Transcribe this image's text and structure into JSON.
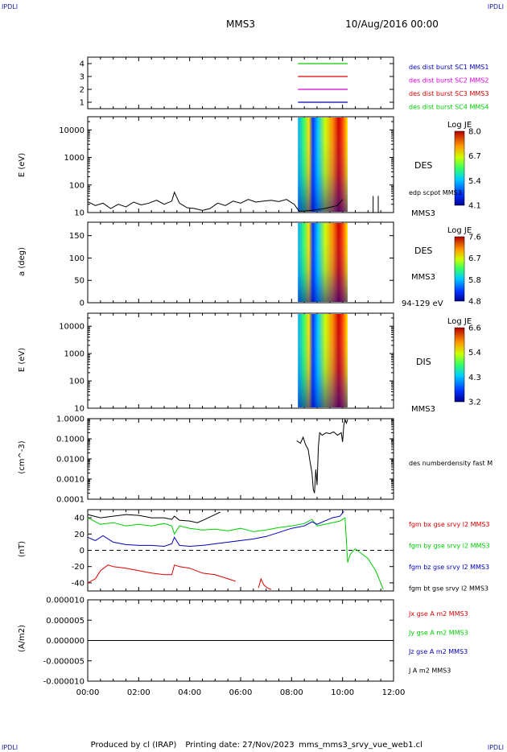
{
  "corner_label": "IPDLI",
  "header": {
    "spacecraft": "MMS3",
    "date": "10/Aug/2016 00:00"
  },
  "footer": {
    "produced_by": "Produced by cl (IRAP)",
    "printing_date": "Printing date: 27/Nov/2023",
    "file": "mms_mms3_srvy_vue_web1.cl"
  },
  "colors": {
    "red": "#dd0000",
    "green": "#00cc00",
    "blue": "#0000bb",
    "magenta": "#dd00dd",
    "black": "#000000",
    "ink": "#000000"
  },
  "time_axis": {
    "ticks": [
      "00:00",
      "02:00",
      "04:00",
      "06:00",
      "08:00",
      "10:00",
      "12:00"
    ],
    "range_hours": [
      0,
      12
    ]
  },
  "chart_data": [
    {
      "type": "line",
      "panel": "burst_coverage",
      "ylim": [
        0.5,
        4.5
      ],
      "yticks": [
        "4",
        "3",
        "2",
        "1"
      ],
      "legend": [
        {
          "text": "des dist burst SC1 MMS1",
          "color": "#0000bb"
        },
        {
          "text": "des dist burst SC2 MMS2",
          "color": "#dd00dd"
        },
        {
          "text": "des dist burst SC3 MMS3",
          "color": "#dd0000"
        },
        {
          "text": "des dist burst SC4 MMS4",
          "color": "#00cc00"
        }
      ],
      "series": [
        {
          "level": 4,
          "color": "#00cc00",
          "x": [
            8.25,
            10.2
          ]
        },
        {
          "level": 3,
          "color": "#dd0000",
          "x": [
            8.25,
            10.2
          ]
        },
        {
          "level": 2,
          "color": "#dd00dd",
          "x": [
            8.25,
            10.2
          ]
        },
        {
          "level": 1,
          "color": "#0000bb",
          "x": [
            8.25,
            10.2
          ]
        }
      ]
    },
    {
      "type": "heatmap",
      "panel": "des_energy",
      "ylabel": "E (eV)",
      "yscale": "log",
      "ylim": [
        10,
        30000
      ],
      "yticks": [
        "10000",
        "1000",
        "100",
        "10"
      ],
      "labels": [
        "DES",
        "edp scpot MMS3",
        "MMS3"
      ],
      "colorbar": {
        "title": "Log JE",
        "ticks": [
          "8.0",
          "6.7",
          "5.4",
          "4.1"
        ]
      },
      "x_range": [
        8.25,
        10.2
      ],
      "line_series": {
        "name": "edp scpot MMS3",
        "x": [
          0,
          0.3,
          0.6,
          0.9,
          1.2,
          1.5,
          1.8,
          2.1,
          2.4,
          2.7,
          3.0,
          3.3,
          3.4,
          3.6,
          3.9,
          4.2,
          4.5,
          4.8,
          5.1,
          5.4,
          5.7,
          6.0,
          6.3,
          6.6,
          6.9,
          7.2,
          7.5,
          7.8,
          8.1,
          8.3,
          8.8,
          9.3,
          9.8,
          10.0
        ],
        "y": [
          25,
          18,
          22,
          14,
          20,
          16,
          24,
          19,
          22,
          28,
          20,
          26,
          55,
          22,
          15,
          14,
          12,
          14,
          22,
          18,
          26,
          22,
          30,
          24,
          26,
          28,
          25,
          30,
          20,
          11,
          12,
          14,
          18,
          30
        ]
      },
      "spikes": [
        11.2,
        11.4
      ]
    },
    {
      "type": "heatmap",
      "panel": "des_pitch",
      "ylabel": "a (deg)",
      "ylim": [
        0,
        180
      ],
      "yticks": [
        "150",
        "100",
        "50",
        "0"
      ],
      "labels": [
        "DES",
        "MMS3",
        "94-129 eV"
      ],
      "colorbar": {
        "title": "Log JE",
        "ticks": [
          "7.6",
          "6.7",
          "5.8",
          "4.8"
        ]
      },
      "x_range": [
        8.25,
        10.2
      ]
    },
    {
      "type": "heatmap",
      "panel": "dis_energy",
      "ylabel": "E (eV)",
      "yscale": "log",
      "ylim": [
        10,
        30000
      ],
      "yticks": [
        "10000",
        "1000",
        "100",
        "10"
      ],
      "labels": [
        "DIS",
        "MMS3"
      ],
      "colorbar": {
        "title": "Log JE",
        "ticks": [
          "6.6",
          "5.4",
          "4.3",
          "3.2"
        ]
      },
      "x_range": [
        8.25,
        10.2
      ]
    },
    {
      "type": "line",
      "panel": "density",
      "ylabel": "(cm^-3)",
      "yscale": "log",
      "ylim": [
        0.0001,
        1.0
      ],
      "yticks": [
        "1.0000",
        "0.1000",
        "0.0100",
        "0.0010",
        "0.0001"
      ],
      "labels": [
        "des numberdensity fast M"
      ],
      "series": [
        {
          "name": "des numberdensity fast MMS3",
          "color": "#000000",
          "x": [
            8.2,
            8.35,
            8.45,
            8.55,
            8.65,
            8.72,
            8.8,
            8.85,
            8.9,
            8.95,
            9.0,
            9.05,
            9.1,
            9.2,
            9.35,
            9.5,
            9.65,
            9.8,
            9.95,
            10.0,
            10.05,
            10.1,
            10.15,
            10.2
          ],
          "y": [
            0.08,
            0.06,
            0.12,
            0.05,
            0.03,
            0.008,
            0.002,
            0.0003,
            0.0002,
            0.003,
            0.0005,
            0.04,
            0.2,
            0.15,
            0.2,
            0.18,
            0.22,
            0.15,
            0.2,
            0.07,
            0.5,
            0.9,
            0.6,
            0.9
          ]
        }
      ]
    },
    {
      "type": "line",
      "panel": "magnetic_field",
      "ylabel": "(nT)",
      "ylim": [
        -50,
        50
      ],
      "yticks": [
        "40",
        "20",
        "0",
        "-20",
        "-40"
      ],
      "legend": [
        {
          "text": "fgm bx gse srvy l2 MMS3",
          "color": "#dd0000"
        },
        {
          "text": "fgm by gse srvy l2 MMS3",
          "color": "#00cc00"
        },
        {
          "text": "fgm bz gse srvy l2 MMS3",
          "color": "#0000bb"
        },
        {
          "text": "fgm bt gse srvy l2 MMS3",
          "color": "#000000"
        }
      ],
      "series": [
        {
          "name": "fgm bt gse srvy l2 MMS3",
          "color": "#000000",
          "x": [
            0,
            0.5,
            1,
            1.5,
            2,
            2.5,
            3,
            3.3,
            3.4,
            3.6,
            4,
            4.3,
            4.6,
            5,
            5.2
          ],
          "y": [
            44,
            40,
            42,
            44,
            43,
            40,
            40,
            38,
            42,
            37,
            36,
            34,
            38,
            44,
            47
          ]
        },
        {
          "name": "fgm by gse srvy l2 MMS3",
          "color": "#00cc00",
          "x": [
            0,
            0.5,
            1,
            1.5,
            2,
            2.5,
            3,
            3.3,
            3.4,
            3.6,
            4,
            4.5,
            5,
            5.5,
            6,
            6.5,
            7,
            7.5,
            8,
            8.5,
            8.8,
            9,
            9.3,
            9.6,
            9.9,
            10.1,
            10.2,
            10.3,
            10.5,
            10.7,
            11.0,
            11.3,
            11.6
          ],
          "y": [
            40,
            32,
            34,
            30,
            32,
            30,
            33,
            30,
            20,
            30,
            27,
            25,
            26,
            24,
            27,
            23,
            25,
            28,
            30,
            33,
            38,
            30,
            32,
            34,
            36,
            40,
            -15,
            -5,
            2,
            -3,
            -10,
            -25,
            -48
          ]
        },
        {
          "name": "fgm bz gse srvy l2 MMS3",
          "color": "#0000bb",
          "x": [
            0,
            0.3,
            0.6,
            1,
            1.5,
            2,
            2.5,
            3,
            3.3,
            3.4,
            3.6,
            4,
            4.5,
            5,
            5.5,
            6,
            6.5,
            7,
            7.5,
            8,
            8.5,
            8.8,
            9,
            9.3,
            9.6,
            9.9,
            10.05
          ],
          "y": [
            16,
            12,
            18,
            10,
            7,
            6,
            6,
            5,
            8,
            16,
            6,
            5,
            6,
            8,
            10,
            12,
            14,
            17,
            22,
            27,
            30,
            35,
            32,
            36,
            40,
            42,
            48
          ]
        },
        {
          "name": "fgm bx gse srvy l2 MMS3",
          "color": "#dd0000",
          "x": [
            0,
            0.3,
            0.5,
            0.8,
            1,
            1.5,
            2,
            2.5,
            3,
            3.3,
            3.4,
            3.6,
            4,
            4.5,
            5,
            5.5,
            5.8
          ],
          "y": [
            -40,
            -35,
            -25,
            -18,
            -20,
            -22,
            -25,
            -28,
            -30,
            -30,
            -18,
            -20,
            -22,
            -28,
            -30,
            -35,
            -38
          ]
        },
        {
          "name": "fgm bx gse srvy l2 MMS3 (late)",
          "color": "#dd0000",
          "x": [
            6.7,
            6.8,
            6.9,
            7.0,
            7.1,
            7.2
          ],
          "y": [
            -46,
            -35,
            -42,
            -45,
            -47,
            -48
          ]
        }
      ]
    },
    {
      "type": "line",
      "panel": "current_density",
      "ylabel": "(A/m2)",
      "ylim": [
        -1e-05,
        1e-05
      ],
      "yticks": [
        "0.000010",
        "0.000005",
        "0.000000",
        "-0.000005",
        "-0.000010"
      ],
      "legend": [
        {
          "text": "Jx gse A m2 MMS3",
          "color": "#dd0000"
        },
        {
          "text": "Jy gse A m2 MMS3",
          "color": "#00cc00"
        },
        {
          "text": "Jz gse A m2 MMS3",
          "color": "#0000bb"
        },
        {
          "text": "J A m2 MMS3",
          "color": "#000000"
        }
      ],
      "series": [
        {
          "name": "J A m2 MMS3",
          "color": "#000000",
          "x": [
            0,
            12
          ],
          "y": [
            0,
            0
          ]
        }
      ]
    }
  ]
}
